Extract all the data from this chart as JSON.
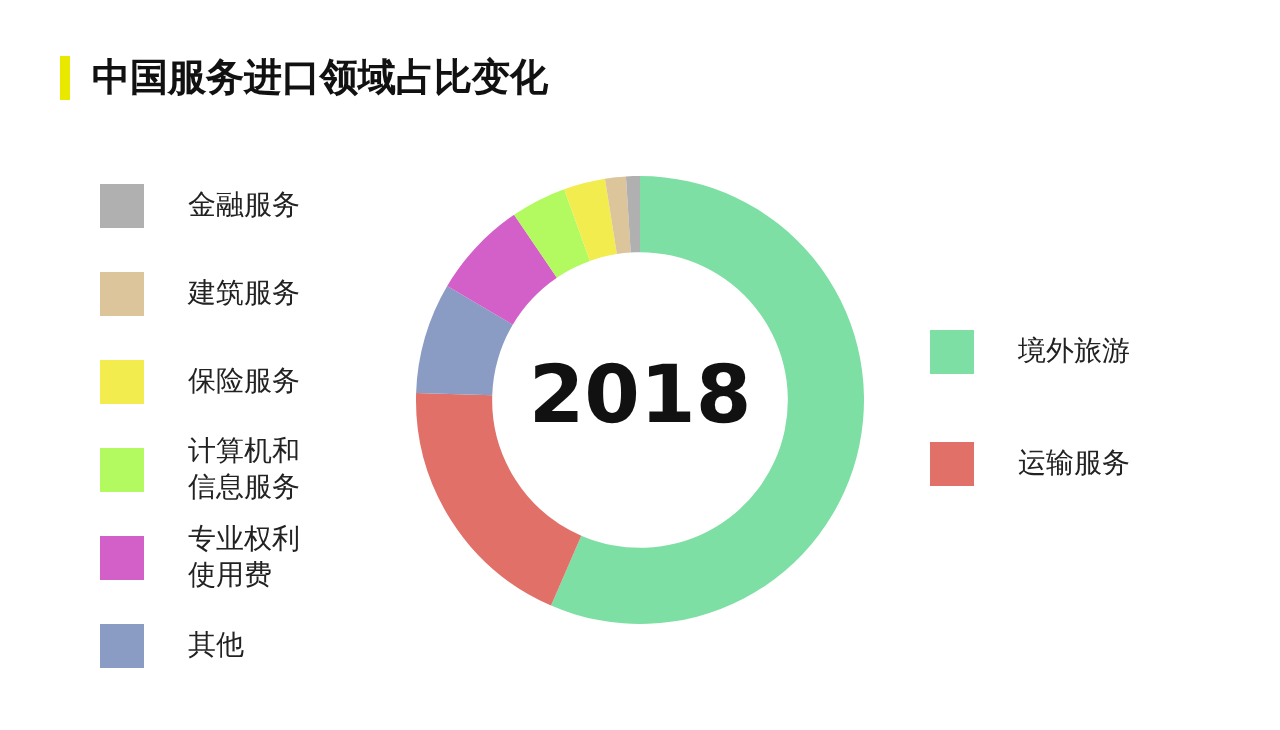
{
  "chart_data": {
    "type": "donut",
    "title": "中国服务进口领域占比变化",
    "categories": [
      "境外旅游",
      "运输服务",
      "其他",
      "专业权利使用费",
      "计算机和信息服务",
      "保险服务",
      "建筑服务",
      "金融服务"
    ],
    "values": [
      56.5,
      19,
      8,
      7,
      4,
      3,
      1.5,
      1
    ],
    "colors": [
      "#7ddfa4",
      "#e07068",
      "#8a9cc4",
      "#d35fc9",
      "#b2fa5f",
      "#f3ec4f",
      "#dcc49b",
      "#b0b0b0"
    ],
    "annotations": [
      "2018"
    ],
    "legend": "left"
  }
}
